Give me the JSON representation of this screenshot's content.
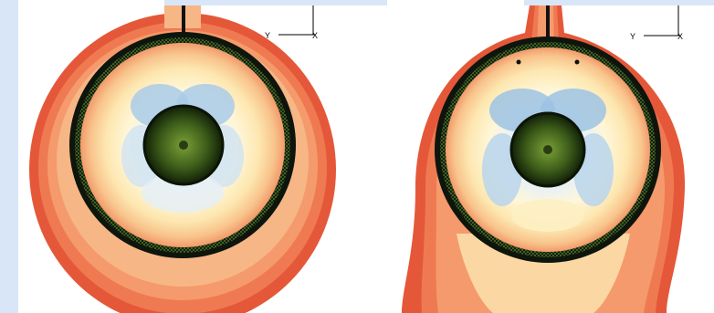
{
  "panels": [
    {
      "id": "left",
      "triad": {
        "y_label": "Y",
        "x_label": "X"
      }
    },
    {
      "id": "right",
      "triad": {
        "y_label": "Y",
        "x_label": "X"
      }
    }
  ],
  "colors": {
    "frame_background": "#d9e6f7",
    "panel_background": "#ffffff",
    "contour_outer": "#e45839",
    "contour_warm": "#f6b47c",
    "contour_pale": "#fff4cc",
    "contour_cool": "#c6def0",
    "contour_cold": "#9dc3e3",
    "ring_dark": "#0e150c",
    "ring_mesh": "#4a7a2c",
    "core_dark": "#1a2b0d",
    "core_mesh": "#6b8e23"
  }
}
